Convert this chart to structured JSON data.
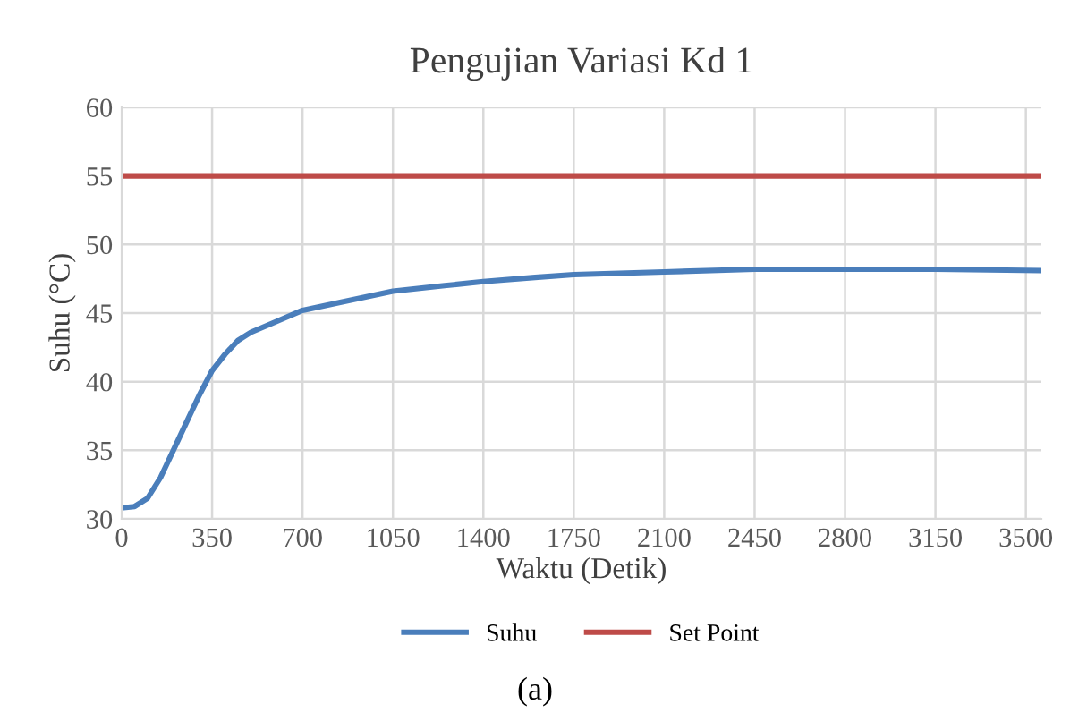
{
  "chart_data": {
    "type": "line",
    "title": "Pengujian Variasi Kd 1",
    "xlabel": "Waktu (Detik)",
    "ylabel": "Suhu (°C)",
    "series": [
      {
        "name": "Suhu",
        "color": "#4a7ebb",
        "x": [
          0,
          50,
          100,
          150,
          200,
          250,
          300,
          350,
          400,
          450,
          500,
          600,
          700,
          850,
          1050,
          1250,
          1400,
          1600,
          1750,
          2100,
          2450,
          2800,
          3150,
          3560
        ],
        "values": [
          30.8,
          30.9,
          31.5,
          33,
          35,
          37,
          39,
          40.8,
          42,
          43,
          43.6,
          44.4,
          45.2,
          45.8,
          46.6,
          47.0,
          47.3,
          47.6,
          47.8,
          48.0,
          48.2,
          48.2,
          48.2,
          48.1
        ]
      },
      {
        "name": "Set Point",
        "color": "#be4b48",
        "x": [
          0,
          3560
        ],
        "values": [
          55,
          55
        ]
      }
    ],
    "xlim": [
      0,
      3560
    ],
    "xticks": [
      0,
      350,
      700,
      1050,
      1400,
      1750,
      2100,
      2450,
      2800,
      3150,
      3500
    ],
    "ylim": [
      30,
      60
    ],
    "yticks": [
      30,
      35,
      40,
      45,
      50,
      55,
      60
    ],
    "grid": true,
    "legend": "bottom",
    "marker": "none",
    "line_style": "solid",
    "annotations": [
      "(a)"
    ]
  }
}
